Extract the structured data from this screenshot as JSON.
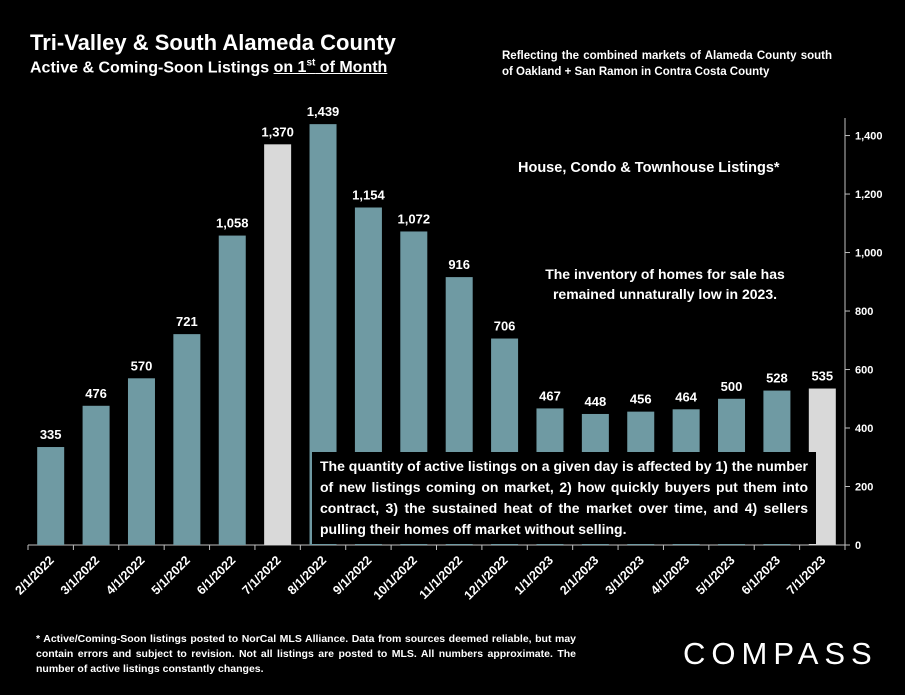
{
  "header": {
    "title": "Tri-Valley & South Alameda County",
    "subtitle_pre": "Active & Coming-Soon Listings ",
    "subtitle_u1": "on 1",
    "subtitle_sup": "st",
    "subtitle_u2": " of Month",
    "note": "Reflecting the combined markets of Alameda County south of Oakland + San Ramon in Contra Costa County"
  },
  "annotations": {
    "series_label": "House, Condo & Townhouse Listings*",
    "inventory_note": "The inventory of homes for sale has remained unnaturally low in 2023.",
    "quantity_note": "The quantity of active listings on a given day is affected by 1) the number of new listings coming on market, 2) how quickly buyers put them into contract, 3) the sustained heat of the market over time, and 4) sellers pulling their homes off market without selling."
  },
  "footer": {
    "footnote": "* Active/Coming-Soon listings posted to NorCal MLS Alliance.  Data from sources deemed reliable, but may contain errors and subject to revision.  Not all listings are posted to MLS. All numbers approximate. The number of active listings constantly changes.",
    "logo": "COMPASS"
  },
  "chart_data": {
    "type": "bar",
    "categories": [
      "2/1/2022",
      "3/1/2022",
      "4/1/2022",
      "5/1/2022",
      "6/1/2022",
      "7/1/2022",
      "8/1/2022",
      "9/1/2022",
      "10/1/2022",
      "11/1/2022",
      "12/1/2022",
      "1/1/2023",
      "2/1/2023",
      "3/1/2023",
      "4/1/2023",
      "5/1/2023",
      "6/1/2023",
      "7/1/2023"
    ],
    "values": [
      335,
      476,
      570,
      721,
      1058,
      1370,
      1439,
      1154,
      1072,
      916,
      706,
      467,
      448,
      456,
      464,
      500,
      528,
      535
    ],
    "data_labels": [
      "335",
      "476",
      "570",
      "721",
      "1,058",
      "1,370",
      "1,439",
      "1,154",
      "1,072",
      "916",
      "706",
      "467",
      "448",
      "456",
      "464",
      "500",
      "528",
      "535"
    ],
    "highlighted_categories": [
      "7/1/2022",
      "7/1/2023"
    ],
    "y_ticks": [
      0,
      200,
      400,
      600,
      800,
      1000,
      1200,
      1400
    ],
    "y_tick_labels": [
      "0",
      "200",
      "400",
      "600",
      "800",
      "1,000",
      "1,200",
      "1,400"
    ],
    "ylim": [
      0,
      1460
    ],
    "y_axis_side": "right",
    "grid": false,
    "colors": {
      "bar": "#6f9aa3",
      "highlight": "#d9d9d9",
      "background": "#000000",
      "axis": "#bfbfbf"
    }
  }
}
